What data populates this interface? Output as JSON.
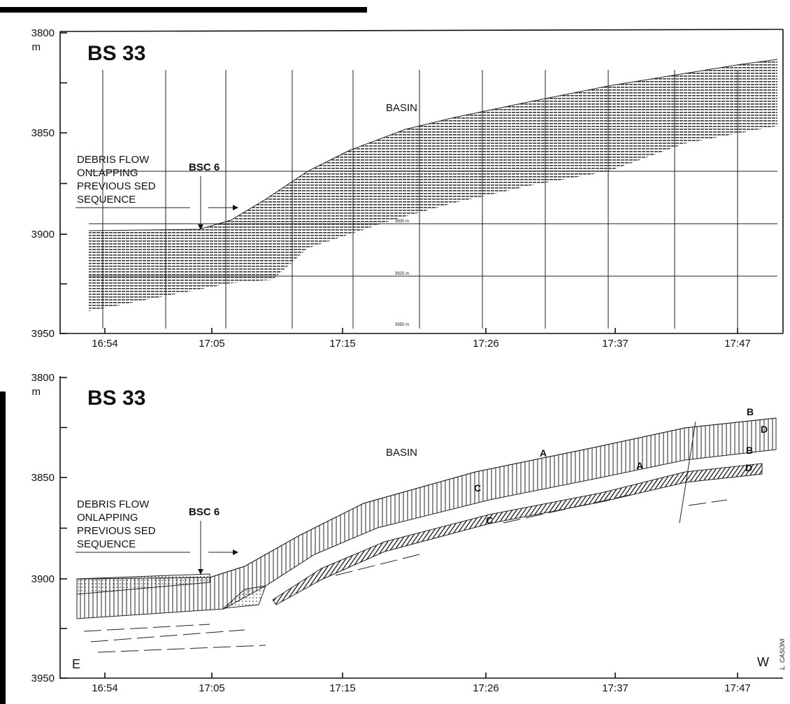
{
  "panels": [
    {
      "title": "BS 33",
      "unit": "m",
      "y_labels": [
        "3800",
        "3850",
        "3900",
        "3950"
      ],
      "x_labels": [
        "16:54",
        "17:05",
        "17:15",
        "17:26",
        "17:37",
        "17:47"
      ],
      "basin": "BASIN",
      "core": "BSC 6",
      "debris": [
        "DEBRIS FLOW",
        "ONLAPPING",
        "PREVIOUS SED",
        "SEQUENCE"
      ],
      "depth_marks": [
        "3900 m",
        "3925 m",
        "3950 m"
      ]
    },
    {
      "title": "BS 33",
      "unit": "m",
      "y_labels": [
        "3800",
        "3850",
        "3900",
        "3950"
      ],
      "x_labels": [
        "16:54",
        "17:05",
        "17:15",
        "17:26",
        "17:37",
        "17:47"
      ],
      "basin": "BASIN",
      "core": "BSC 6",
      "debris": [
        "DEBRIS FLOW",
        "ONLAPPING",
        "PREVIOUS SED",
        "SEQUENCE"
      ],
      "layers": [
        "A",
        "B",
        "C",
        "D",
        "A",
        "B",
        "C",
        "D"
      ],
      "east": "E",
      "west": "W",
      "signature": "L. CASONI"
    }
  ]
}
